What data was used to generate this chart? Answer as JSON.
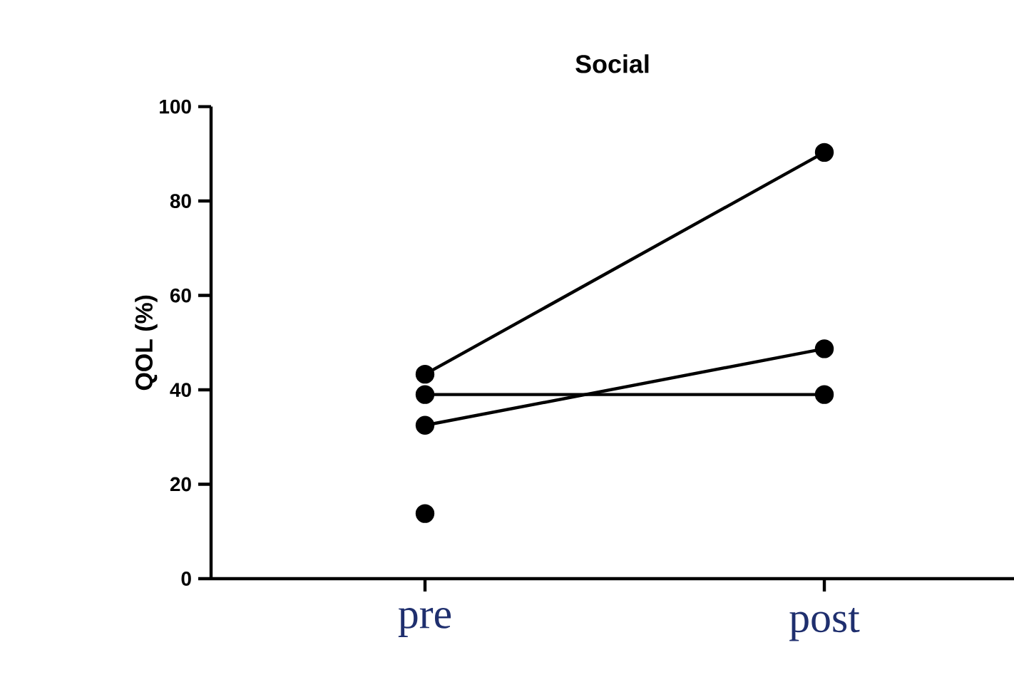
{
  "chart_data": {
    "type": "line",
    "title": "Social",
    "ylabel": "QOL (%)",
    "categories": [
      "pre",
      "post"
    ],
    "series": [
      {
        "color": "#000000",
        "values": [
          43.3,
          90.3
        ]
      },
      {
        "color": "#000000",
        "values": [
          39.0,
          39.0
        ]
      },
      {
        "color": "#000000",
        "values": [
          32.5,
          48.7
        ]
      },
      {
        "color": "#000000",
        "values": [
          13.8,
          null
        ]
      }
    ],
    "ylim": [
      0,
      100
    ],
    "yticks": [
      0,
      20,
      40,
      60,
      80,
      100
    ],
    "marker": "circle",
    "line_style": "solid",
    "grid": false
  }
}
